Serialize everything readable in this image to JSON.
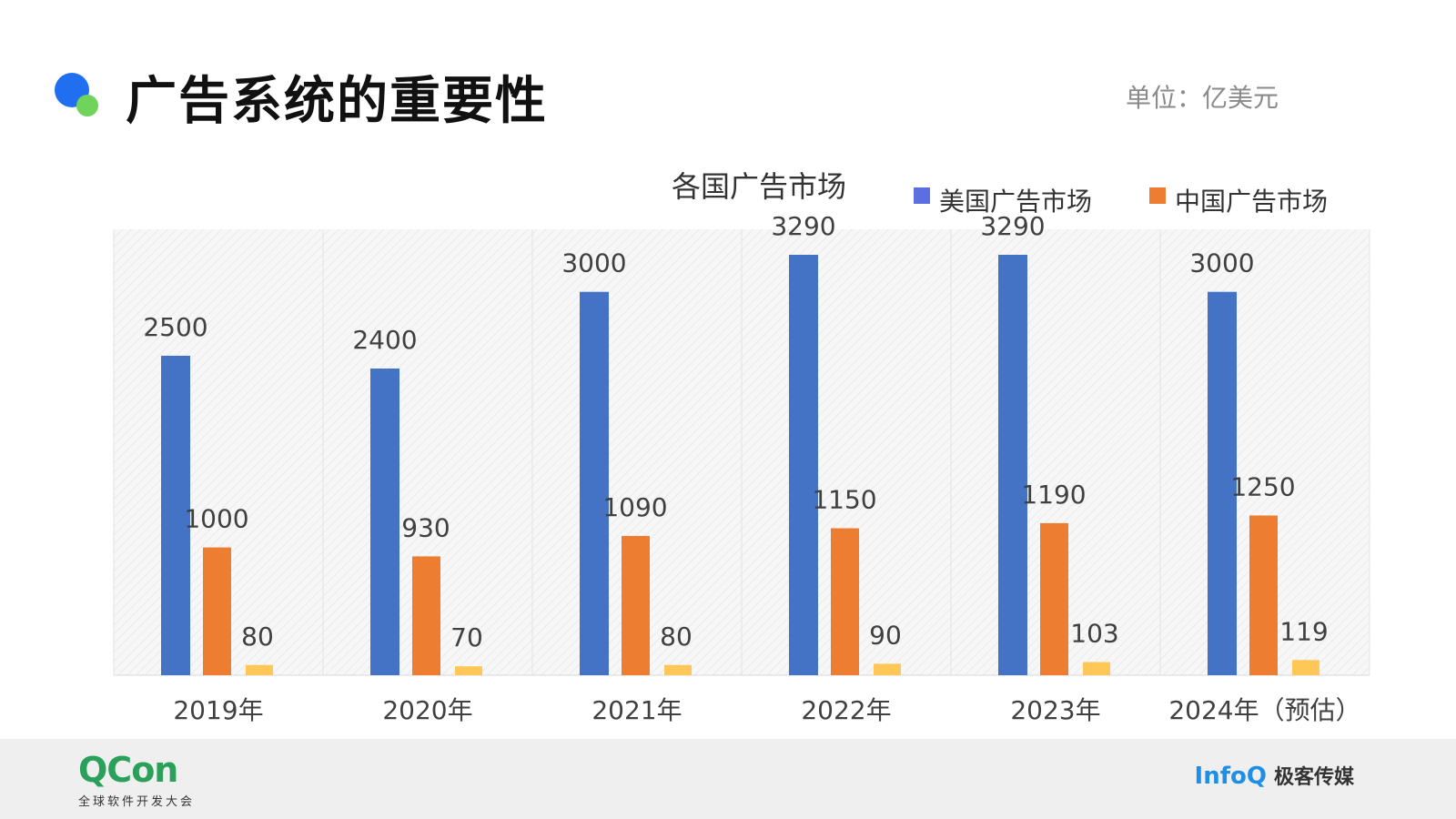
{
  "header": {
    "title": "广告系统的重要性",
    "unit": "单位：亿美元"
  },
  "footer": {
    "qcon_brand": "QCon",
    "qcon_tagline": "全球软件开发大会",
    "infoq_brand": "InfoQ",
    "infoq_cn": "极客传媒"
  },
  "colors": {
    "us": "#4472c4",
    "cn": "#ed7d31",
    "third": "#ffc658",
    "legend_us": "#5b6fe0"
  },
  "chart_data": {
    "type": "bar",
    "title": "各国广告市场",
    "legend_position": "top-right",
    "categories": [
      "2019年",
      "2020年",
      "2021年",
      "2022年",
      "2023年",
      "2024年（预估）"
    ],
    "series": [
      {
        "name": "美国广告市场",
        "values": [
          2500,
          2400,
          3000,
          3290,
          3290,
          3000
        ]
      },
      {
        "name": "中国广告市场",
        "values": [
          1000,
          930,
          1090,
          1150,
          1190,
          1250
        ]
      },
      {
        "values": [
          80,
          70,
          80,
          90,
          103,
          119
        ]
      }
    ],
    "ylim": [
      0,
      3290
    ],
    "grid": false
  }
}
